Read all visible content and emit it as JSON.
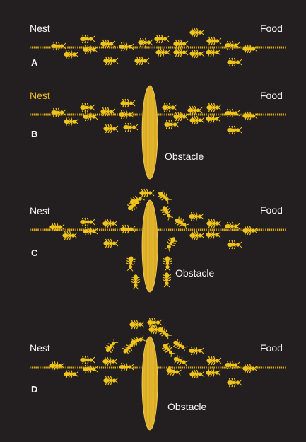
{
  "colors": {
    "background": "#231f20",
    "ant": "#f0c419",
    "trail": "#d9a817",
    "obstacle": "#e2b52c",
    "text": "#f4f4f4",
    "highlight_text": "#e8b928"
  },
  "panels": [
    {
      "letter": "A",
      "nest_label": "Nest",
      "food_label": "Food",
      "obstacle_label": ""
    },
    {
      "letter": "B",
      "nest_label": "Nest",
      "food_label": "Food",
      "obstacle_label": "Obstacle"
    },
    {
      "letter": "C",
      "nest_label": "Nest",
      "food_label": "Food",
      "obstacle_label": "Obstacle"
    },
    {
      "letter": "D",
      "nest_label": "Nest",
      "food_label": "Food",
      "obstacle_label": "Obstacle"
    }
  ]
}
